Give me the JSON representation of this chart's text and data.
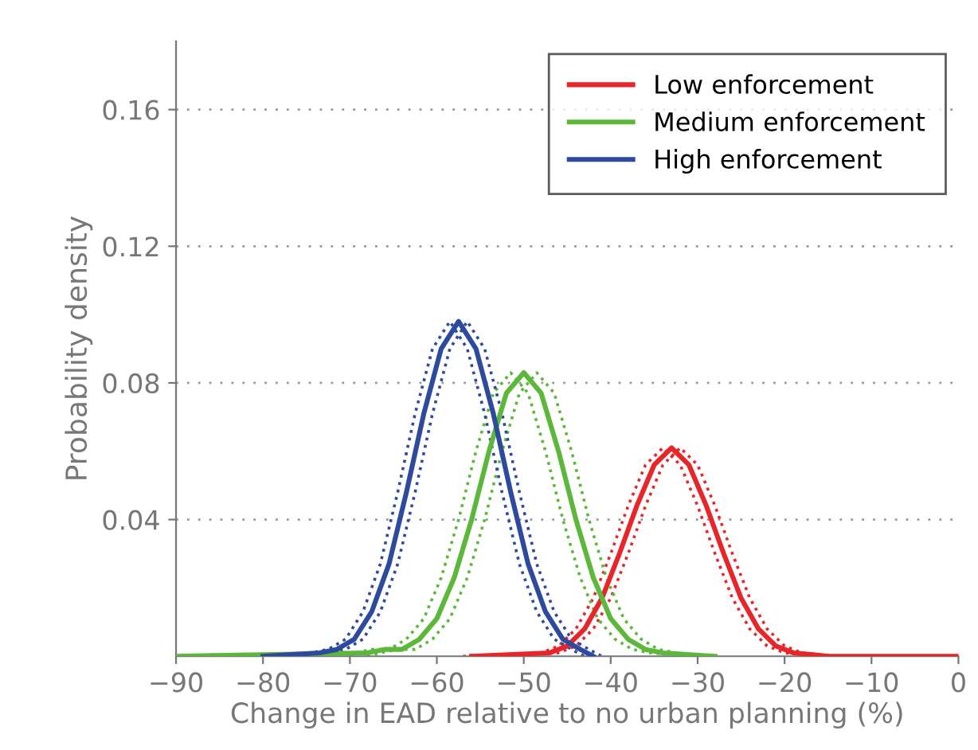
{
  "chart_data": {
    "type": "line",
    "xlabel": "Change in EAD relative to no urban planning (%)",
    "ylabel": "Probability density",
    "xlim": [
      -90,
      0
    ],
    "xticks": [
      {
        "value": -90,
        "label": "−90"
      },
      {
        "value": -80,
        "label": "−80"
      },
      {
        "value": -70,
        "label": "−70"
      },
      {
        "value": -60,
        "label": "−60"
      },
      {
        "value": -50,
        "label": "−50"
      },
      {
        "value": -40,
        "label": "−40"
      },
      {
        "value": -30,
        "label": "−30"
      },
      {
        "value": -20,
        "label": "−20"
      },
      {
        "value": -10,
        "label": "−10"
      },
      0
    ],
    "ylim": [
      0,
      0.18
    ],
    "yticks": [
      0.04,
      0.08,
      0.12,
      0.16
    ],
    "grid": "y",
    "legend": "top right",
    "marker": "none",
    "series": [
      {
        "name": "Low enforcement",
        "color": "#e8262a",
        "line_style": "solid",
        "x": [
          -56,
          -47,
          -45,
          -43,
          -41,
          -39,
          -37,
          -35,
          -33,
          -31,
          -29,
          -27,
          -25,
          -23,
          -21,
          -19,
          -15,
          0
        ],
        "values": [
          0,
          0.001,
          0.003,
          0.008,
          0.017,
          0.03,
          0.044,
          0.056,
          0.061,
          0.056,
          0.044,
          0.03,
          0.017,
          0.008,
          0.003,
          0.001,
          0,
          0
        ]
      },
      {
        "name": "Medium enforcement",
        "color": "#5cb83a",
        "line_style": "solid",
        "x": [
          -90,
          -68,
          -66,
          -64,
          -62,
          -60,
          -58,
          -56,
          -54,
          -52,
          -50,
          -48,
          -46,
          -44,
          -42,
          -40,
          -38,
          -36,
          -34,
          -28
        ],
        "values": [
          0,
          0.001,
          0.002,
          0.002,
          0.005,
          0.011,
          0.023,
          0.04,
          0.06,
          0.077,
          0.083,
          0.077,
          0.06,
          0.04,
          0.023,
          0.011,
          0.005,
          0.002,
          0.001,
          0
        ]
      },
      {
        "name": "High enforcement",
        "color": "#2e4a9e",
        "line_style": "solid",
        "x": [
          -80,
          -73.5,
          -71.5,
          -69.5,
          -67.5,
          -65.5,
          -63.5,
          -61.5,
          -59.5,
          -57.5,
          -55.5,
          -53.5,
          -51.5,
          -49.5,
          -47.5,
          -45.5,
          -43.5,
          -42
        ],
        "values": [
          0,
          0.001,
          0.002,
          0.005,
          0.013,
          0.027,
          0.048,
          0.071,
          0.09,
          0.098,
          0.09,
          0.071,
          0.048,
          0.027,
          0.013,
          0.005,
          0.002,
          0
        ]
      },
      {
        "color": "#e8262a",
        "line_style": "dotted",
        "x": [
          -57,
          -48,
          -46,
          -44,
          -42,
          -40,
          -38,
          -36,
          -34,
          -32,
          -30,
          -28,
          -26,
          -24,
          -22,
          -20,
          -16,
          -1
        ],
        "values": [
          0,
          0.001,
          0.003,
          0.008,
          0.017,
          0.03,
          0.044,
          0.056,
          0.061,
          0.056,
          0.044,
          0.03,
          0.017,
          0.008,
          0.003,
          0.001,
          0,
          0
        ]
      },
      {
        "color": "#e8262a",
        "line_style": "dotted",
        "x": [
          -55,
          -46,
          -44,
          -42,
          -40,
          -38,
          -36,
          -34,
          -32,
          -30,
          -28,
          -26,
          -24,
          -22,
          -20,
          -18,
          -14,
          0
        ],
        "values": [
          0,
          0.001,
          0.003,
          0.008,
          0.017,
          0.03,
          0.044,
          0.056,
          0.061,
          0.056,
          0.044,
          0.03,
          0.017,
          0.008,
          0.003,
          0.001,
          0,
          0
        ]
      },
      {
        "color": "#5cb83a",
        "line_style": "dotted",
        "x": [
          -70,
          -69.5,
          -67.5,
          -65.5,
          -63.5,
          -61.5,
          -59.5,
          -57.5,
          -55.5,
          -53.5,
          -51.5,
          -49.5,
          -47.5,
          -45.5,
          -43.5,
          -41.5,
          -39.5,
          -37.5,
          -35.5,
          -30
        ],
        "values": [
          0,
          0.001,
          0.002,
          0.002,
          0.005,
          0.011,
          0.023,
          0.04,
          0.06,
          0.077,
          0.083,
          0.077,
          0.06,
          0.04,
          0.023,
          0.011,
          0.005,
          0.002,
          0.001,
          0
        ]
      },
      {
        "color": "#5cb83a",
        "line_style": "dotted",
        "x": [
          -68,
          -66.5,
          -64.5,
          -62.5,
          -60.5,
          -58.5,
          -56.5,
          -54.5,
          -52.5,
          -50.5,
          -48.5,
          -46.5,
          -44.5,
          -42.5,
          -40.5,
          -38.5,
          -36.5,
          -34.5,
          -32.5,
          -28
        ],
        "values": [
          0,
          0.001,
          0.002,
          0.002,
          0.005,
          0.011,
          0.023,
          0.04,
          0.06,
          0.077,
          0.083,
          0.077,
          0.06,
          0.04,
          0.023,
          0.011,
          0.005,
          0.002,
          0.001,
          0
        ]
      },
      {
        "color": "#2e4a9e",
        "line_style": "dotted",
        "x": [
          -81,
          -74.5,
          -72.5,
          -70.5,
          -68.5,
          -66.5,
          -64.5,
          -62.5,
          -60.5,
          -58.5,
          -56.5,
          -54.5,
          -52.5,
          -50.5,
          -48.5,
          -46.5,
          -44.5,
          -43
        ],
        "values": [
          0,
          0.001,
          0.002,
          0.005,
          0.013,
          0.027,
          0.048,
          0.071,
          0.09,
          0.098,
          0.09,
          0.071,
          0.048,
          0.027,
          0.013,
          0.005,
          0.002,
          0
        ]
      },
      {
        "color": "#2e4a9e",
        "line_style": "dotted",
        "x": [
          -79,
          -72.5,
          -70.5,
          -68.5,
          -66.5,
          -64.5,
          -62.5,
          -60.5,
          -58.5,
          -56.5,
          -54.5,
          -52.5,
          -50.5,
          -48.5,
          -46.5,
          -44.5,
          -42.5,
          -41
        ],
        "values": [
          0,
          0.001,
          0.002,
          0.005,
          0.013,
          0.027,
          0.048,
          0.071,
          0.09,
          0.098,
          0.09,
          0.071,
          0.048,
          0.027,
          0.013,
          0.005,
          0.002,
          0
        ]
      }
    ]
  }
}
